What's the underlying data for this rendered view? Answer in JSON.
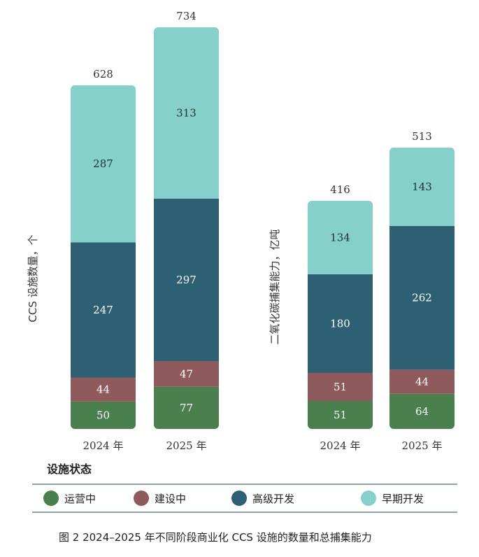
{
  "chart_data": [
    {
      "type": "bar",
      "stacked": true,
      "ylabel": "CCS 设施数量，个",
      "categories": [
        "2024 年",
        "2025 年"
      ],
      "series": [
        {
          "name": "运营中",
          "values": [
            50,
            77
          ],
          "color": "#4a7f4e"
        },
        {
          "name": "建设中",
          "values": [
            44,
            47
          ],
          "color": "#8f5a5c"
        },
        {
          "name": "高级开发",
          "values": [
            247,
            297
          ],
          "color": "#2e6073"
        },
        {
          "name": "早期开发",
          "values": [
            287,
            313
          ],
          "color": "#86d0cb"
        }
      ],
      "totals": [
        628,
        734
      ]
    },
    {
      "type": "bar",
      "stacked": true,
      "ylabel": "二氧化碳捕集能力，亿吨",
      "categories": [
        "2024 年",
        "2025 年"
      ],
      "series": [
        {
          "name": "运营中",
          "values": [
            51,
            64
          ],
          "color": "#4a7f4e"
        },
        {
          "name": "建设中",
          "values": [
            51,
            44
          ],
          "color": "#8f5a5c"
        },
        {
          "name": "高级开发",
          "values": [
            180,
            262
          ],
          "color": "#2e6073"
        },
        {
          "name": "早期开发",
          "values": [
            134,
            143
          ],
          "color": "#86d0cb"
        }
      ],
      "totals": [
        416,
        513
      ]
    }
  ],
  "legend": {
    "title": "设施状态",
    "items": [
      {
        "label": "运营中",
        "color": "#4a7f4e"
      },
      {
        "label": "建设中",
        "color": "#8f5a5c"
      },
      {
        "label": "高级开发",
        "color": "#2e6073"
      },
      {
        "label": "早期开发",
        "color": "#86d0cb"
      }
    ]
  },
  "caption": "图 2  2024–2025 年不同阶段商业化 CCS 设施的数量和总捕集能力"
}
